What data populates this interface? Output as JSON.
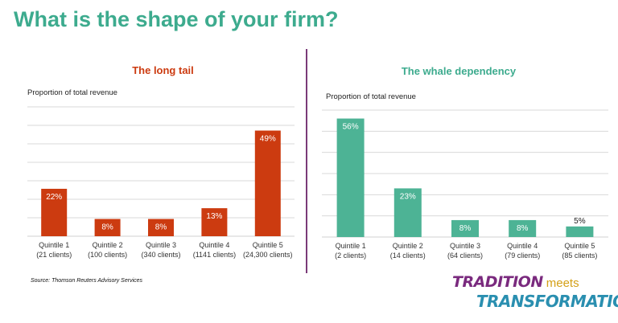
{
  "page": {
    "title": "What is the shape of your firm?",
    "source": "Source: Thomson Reuters Advisory Services",
    "logo": {
      "word1": "TRADITION",
      "word2": "meets",
      "word3": "TRANSFORMATION"
    }
  },
  "colors": {
    "title": "#3dab8e",
    "divider": "#7a3a78",
    "left_series": "#cc3b10",
    "right_series": "#4db395",
    "gridline": "#d9d9d9"
  },
  "chart_data": [
    {
      "type": "bar",
      "title": "The long tail",
      "ylabel": "Proportion of total revenue",
      "categories": [
        [
          "Quintile 1",
          "(21 clients)"
        ],
        [
          "Quintile 2",
          "(100 clients)"
        ],
        [
          "Quintile 3",
          "(340 clients)"
        ],
        [
          "Quintile 4",
          "(1141 clients)"
        ],
        [
          "Quintile 5",
          "(24,300 clients)"
        ]
      ],
      "values": [
        22,
        8,
        8,
        13,
        49
      ],
      "data_labels": [
        "22%",
        "8%",
        "8%",
        "13%",
        "49%"
      ],
      "ylim": [
        0,
        60
      ],
      "grid": true,
      "color": "#cc3b10"
    },
    {
      "type": "bar",
      "title": "The whale dependency",
      "ylabel": "Proportion of total revenue",
      "categories": [
        [
          "Quintile 1",
          "(2 clients)"
        ],
        [
          "Quintile 2",
          "(14 clients)"
        ],
        [
          "Quintile 3",
          "(64 clients)"
        ],
        [
          "Quintile 4",
          "(79 clients)"
        ],
        [
          "Quintile 5",
          "(85 clients)"
        ]
      ],
      "values": [
        56,
        23,
        8,
        8,
        5
      ],
      "data_labels": [
        "56%",
        "23%",
        "8%",
        "8%",
        "5%"
      ],
      "ylim": [
        0,
        60
      ],
      "grid": true,
      "color": "#4db395"
    }
  ]
}
